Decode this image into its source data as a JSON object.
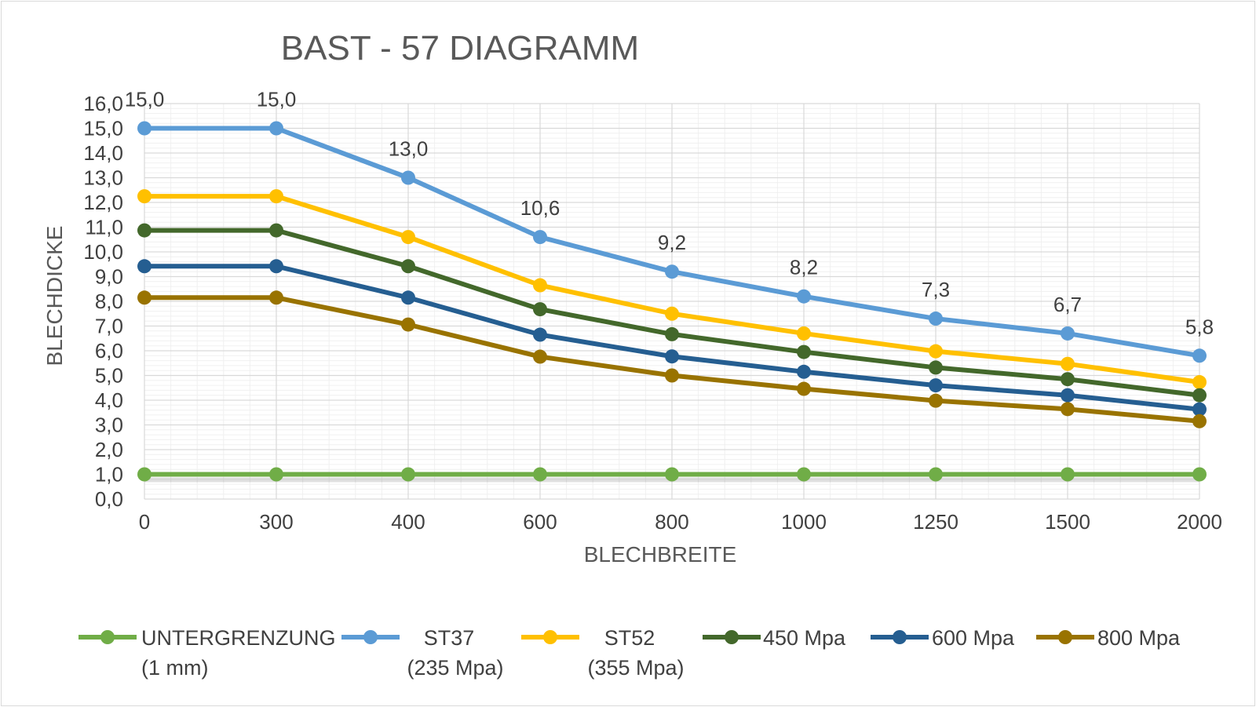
{
  "chart_data": {
    "type": "line",
    "title": "BAST - 57 DIAGRAMM",
    "xlabel": "BLECHBREITE",
    "ylabel": "BLECHDICKE",
    "categories": [
      "0",
      "300",
      "400",
      "600",
      "800",
      "1000",
      "1250",
      "1500",
      "2000"
    ],
    "ylim": [
      0,
      16
    ],
    "yticks": [
      "0,0",
      "1,0",
      "2,0",
      "3,0",
      "4,0",
      "5,0",
      "6,0",
      "7,0",
      "8,0",
      "9,0",
      "10,0",
      "11,0",
      "12,0",
      "13,0",
      "14,0",
      "15,0",
      "16,0"
    ],
    "grid": true,
    "legend_position": "bottom",
    "series": [
      {
        "name": "UNTERGRENZUNG",
        "name_line2": "(1 mm)",
        "color": "#70ad47",
        "values": [
          1.0,
          1.0,
          1.0,
          1.0,
          1.0,
          1.0,
          1.0,
          1.0,
          1.0
        ]
      },
      {
        "name": "ST37",
        "name_line2": "(235 Mpa)",
        "color": "#5b9bd5",
        "values": [
          15.0,
          15.0,
          13.0,
          10.6,
          9.2,
          8.2,
          7.3,
          6.7,
          5.8
        ],
        "labels": [
          "15,0",
          "15,0",
          "13,0",
          "10,6",
          "9,2",
          "8,2",
          "7,3",
          "6,7",
          "5,8"
        ]
      },
      {
        "name": "ST52",
        "name_line2": "(355 Mpa)",
        "color": "#ffc000",
        "values": [
          12.25,
          12.25,
          10.6,
          8.65,
          7.5,
          6.7,
          5.98,
          5.47,
          4.73
        ]
      },
      {
        "name": "450  Mpa",
        "name_line2": "",
        "color": "#43682b",
        "values": [
          10.87,
          10.87,
          9.42,
          7.68,
          6.67,
          5.95,
          5.32,
          4.85,
          4.2
        ]
      },
      {
        "name": "600 Mpa",
        "name_line2": "",
        "color": "#255e91",
        "values": [
          9.42,
          9.42,
          8.15,
          6.65,
          5.77,
          5.15,
          4.6,
          4.2,
          3.63
        ]
      },
      {
        "name": "800 Mpa",
        "name_line2": "",
        "color": "#997300",
        "values": [
          8.15,
          8.15,
          7.06,
          5.76,
          5.0,
          4.46,
          3.98,
          3.64,
          3.15
        ]
      }
    ]
  }
}
